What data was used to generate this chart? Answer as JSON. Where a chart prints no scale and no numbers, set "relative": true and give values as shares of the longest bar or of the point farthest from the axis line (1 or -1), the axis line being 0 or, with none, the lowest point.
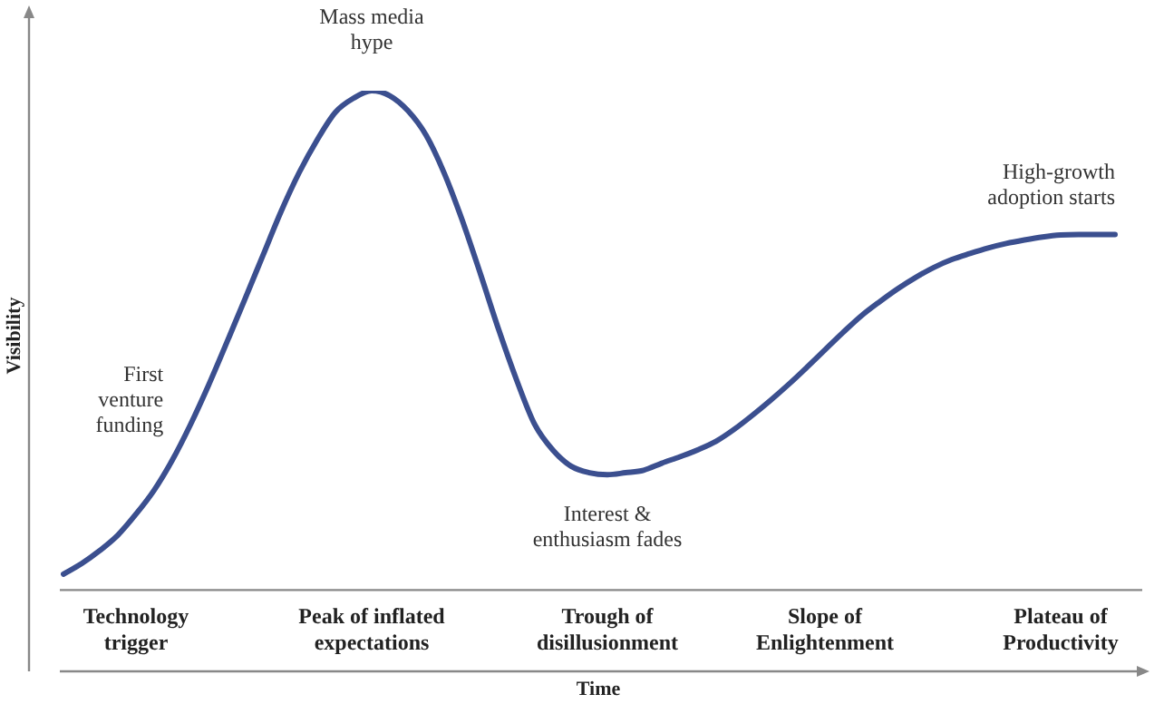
{
  "chart_data": {
    "type": "line",
    "relative": true,
    "xlabel": "Time",
    "ylabel": "Visibility",
    "color": "#3b4f8f",
    "marker": "none",
    "grid": false,
    "legend": false,
    "categories": [
      null,
      null,
      null,
      null,
      "Technology trigger",
      null,
      null,
      null,
      null,
      null,
      null,
      null,
      null,
      null,
      null,
      null,
      null,
      "Peak of inflated expectations",
      null,
      null,
      null,
      null,
      null,
      null,
      null,
      null,
      null,
      null,
      null,
      null,
      "Trough of disillusionment",
      null,
      null,
      null,
      null,
      null,
      null,
      null,
      null,
      null,
      null,
      null,
      "Slope of Enlightenment",
      null,
      null,
      null,
      null,
      null,
      null,
      null,
      null,
      null,
      null,
      null,
      null,
      "Plateau of Productivity",
      null,
      null,
      null
    ],
    "values": [
      0.032,
      0.053,
      0.079,
      0.11,
      0.152,
      0.2,
      0.26,
      0.331,
      0.41,
      0.495,
      0.582,
      0.67,
      0.758,
      0.836,
      0.902,
      0.957,
      0.985,
      1,
      0.99,
      0.96,
      0.911,
      0.835,
      0.74,
      0.633,
      0.522,
      0.42,
      0.331,
      0.28,
      0.248,
      0.235,
      0.231,
      0.235,
      0.24,
      0.254,
      0.267,
      0.281,
      0.298,
      0.322,
      0.35,
      0.38,
      0.412,
      0.446,
      0.481,
      0.516,
      0.549,
      0.577,
      0.603,
      0.626,
      0.646,
      0.662,
      0.674,
      0.685,
      0.694,
      0.701,
      0.707,
      0.711,
      0.712,
      0.712,
      0.712
    ],
    "annotations": [
      {
        "text": "Mass media hype",
        "x": "Peak of inflated expectations",
        "y": 1
      },
      "First venture funding",
      {
        "text": "Interest & enthusiasm fades",
        "x": "Trough of disillusionment",
        "y": 0.231
      },
      "High-growth adoption starts"
    ]
  }
}
